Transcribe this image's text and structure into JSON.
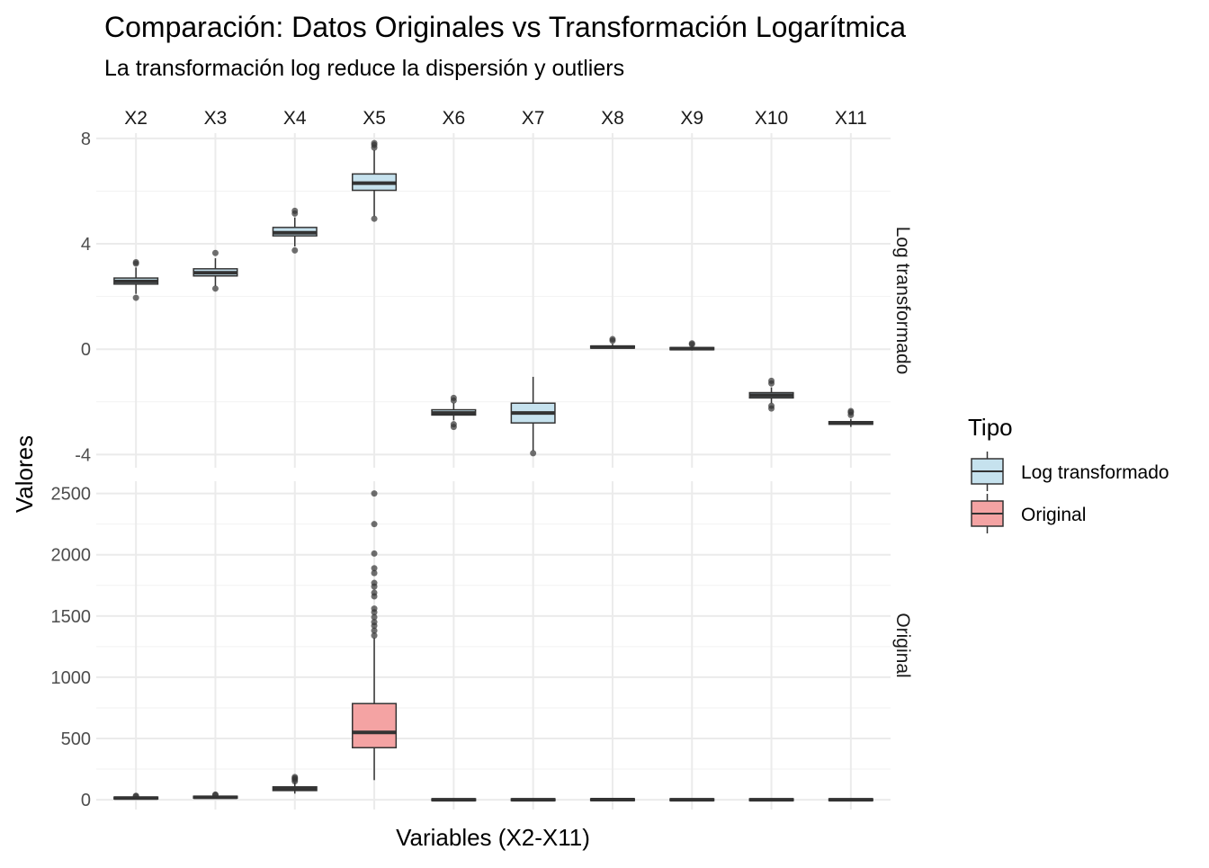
{
  "chart_data": {
    "type": "boxplot",
    "title": "Comparación: Datos Originales vs Transformación Logarítmica",
    "subtitle": "La transformación log reduce la dispersión y outliers",
    "xlabel": "Variables (X2-X11)",
    "ylabel": "Valores",
    "categories": [
      "X2",
      "X3",
      "X4",
      "X5",
      "X6",
      "X7",
      "X8",
      "X9",
      "X10",
      "X11"
    ],
    "grid": true,
    "legend": {
      "title": "Tipo",
      "position": "right",
      "entries": [
        {
          "label": "Log transformado",
          "color": "#c6e2ee"
        },
        {
          "label": "Original",
          "color": "#f4a3a3"
        }
      ]
    },
    "facets": [
      {
        "label": "Log transformado",
        "fill": "#c6e2ee",
        "ylim": [
          -4.5,
          8.2
        ],
        "yticks": [
          -4,
          0,
          4,
          8
        ],
        "tick_labels": [
          "-4",
          "0",
          "4",
          "8"
        ],
        "boxes": [
          {
            "q1": 2.47,
            "median": 2.57,
            "q3": 2.7,
            "wmin": 2.1,
            "wmax": 3.1,
            "outliers": [
              1.95,
              3.25,
              3.3
            ]
          },
          {
            "q1": 2.78,
            "median": 2.9,
            "q3": 3.05,
            "wmin": 2.4,
            "wmax": 3.45,
            "outliers": [
              2.3,
              3.65
            ]
          },
          {
            "q1": 4.3,
            "median": 4.42,
            "q3": 4.62,
            "wmin": 3.9,
            "wmax": 5.0,
            "outliers": [
              3.75,
              5.15,
              5.25
            ]
          },
          {
            "q1": 6.03,
            "median": 6.3,
            "q3": 6.65,
            "wmin": 5.05,
            "wmax": 7.55,
            "outliers": [
              4.95,
              7.65,
              7.75,
              7.82
            ]
          },
          {
            "q1": -2.5,
            "median": -2.42,
            "q3": -2.3,
            "wmin": -2.7,
            "wmax": -2.05,
            "outliers": [
              -2.85,
              -2.95,
              -1.85,
              -1.95
            ]
          },
          {
            "q1": -2.8,
            "median": -2.42,
            "q3": -2.05,
            "wmin": -3.85,
            "wmax": -1.05,
            "outliers": [
              -3.95
            ]
          },
          {
            "q1": 0.04,
            "median": 0.08,
            "q3": 0.12,
            "wmin": 0.01,
            "wmax": 0.2,
            "outliers": [
              0.32,
              0.38
            ]
          },
          {
            "q1": -0.02,
            "median": 0.02,
            "q3": 0.06,
            "wmin": -0.05,
            "wmax": 0.12,
            "outliers": [
              0.18,
              0.22
            ]
          },
          {
            "q1": -1.85,
            "median": -1.75,
            "q3": -1.65,
            "wmin": -2.05,
            "wmax": -1.45,
            "outliers": [
              -2.15,
              -2.25,
              -1.3,
              -1.2
            ]
          },
          {
            "q1": -2.85,
            "median": -2.8,
            "q3": -2.75,
            "wmin": -2.95,
            "wmax": -2.65,
            "outliers": [
              -2.5,
              -2.4,
              -2.35
            ]
          }
        ]
      },
      {
        "label": "Original",
        "fill": "#f4a3a3",
        "ylim": [
          -80,
          2600
        ],
        "yticks": [
          0,
          500,
          1000,
          1500,
          2000,
          2500
        ],
        "tick_labels": [
          "0",
          "500",
          "1000",
          "1500",
          "2000",
          "2500"
        ],
        "boxes": [
          {
            "q1": 10,
            "median": 14,
            "q3": 18,
            "wmin": 5,
            "wmax": 24,
            "outliers": [
              28,
              32
            ]
          },
          {
            "q1": 16,
            "median": 20,
            "q3": 26,
            "wmin": 10,
            "wmax": 32,
            "outliers": [
              38,
              42
            ]
          },
          {
            "q1": 75,
            "median": 90,
            "q3": 105,
            "wmin": 50,
            "wmax": 140,
            "outliers": [
              150,
              165,
              175,
              185
            ]
          },
          {
            "q1": 425,
            "median": 550,
            "q3": 785,
            "wmin": 160,
            "wmax": 1320,
            "outliers": [
              1340,
              1380,
              1420,
              1450,
              1490,
              1530,
              1560,
              1660,
              1690,
              1740,
              1770,
              1850,
              1890,
              2010,
              2250,
              2500
            ]
          },
          {
            "q1": -4,
            "median": 0,
            "q3": 4,
            "wmin": -6,
            "wmax": 6,
            "outliers": []
          },
          {
            "q1": -4,
            "median": 0,
            "q3": 4,
            "wmin": -6,
            "wmax": 6,
            "outliers": []
          },
          {
            "q1": -4,
            "median": 1,
            "q3": 5,
            "wmin": -6,
            "wmax": 7,
            "outliers": []
          },
          {
            "q1": -4,
            "median": 0,
            "q3": 4,
            "wmin": -6,
            "wmax": 6,
            "outliers": []
          },
          {
            "q1": -4,
            "median": 0,
            "q3": 4,
            "wmin": -6,
            "wmax": 6,
            "outliers": []
          },
          {
            "q1": -4,
            "median": 0,
            "q3": 4,
            "wmin": -6,
            "wmax": 6,
            "outliers": []
          }
        ]
      }
    ]
  }
}
